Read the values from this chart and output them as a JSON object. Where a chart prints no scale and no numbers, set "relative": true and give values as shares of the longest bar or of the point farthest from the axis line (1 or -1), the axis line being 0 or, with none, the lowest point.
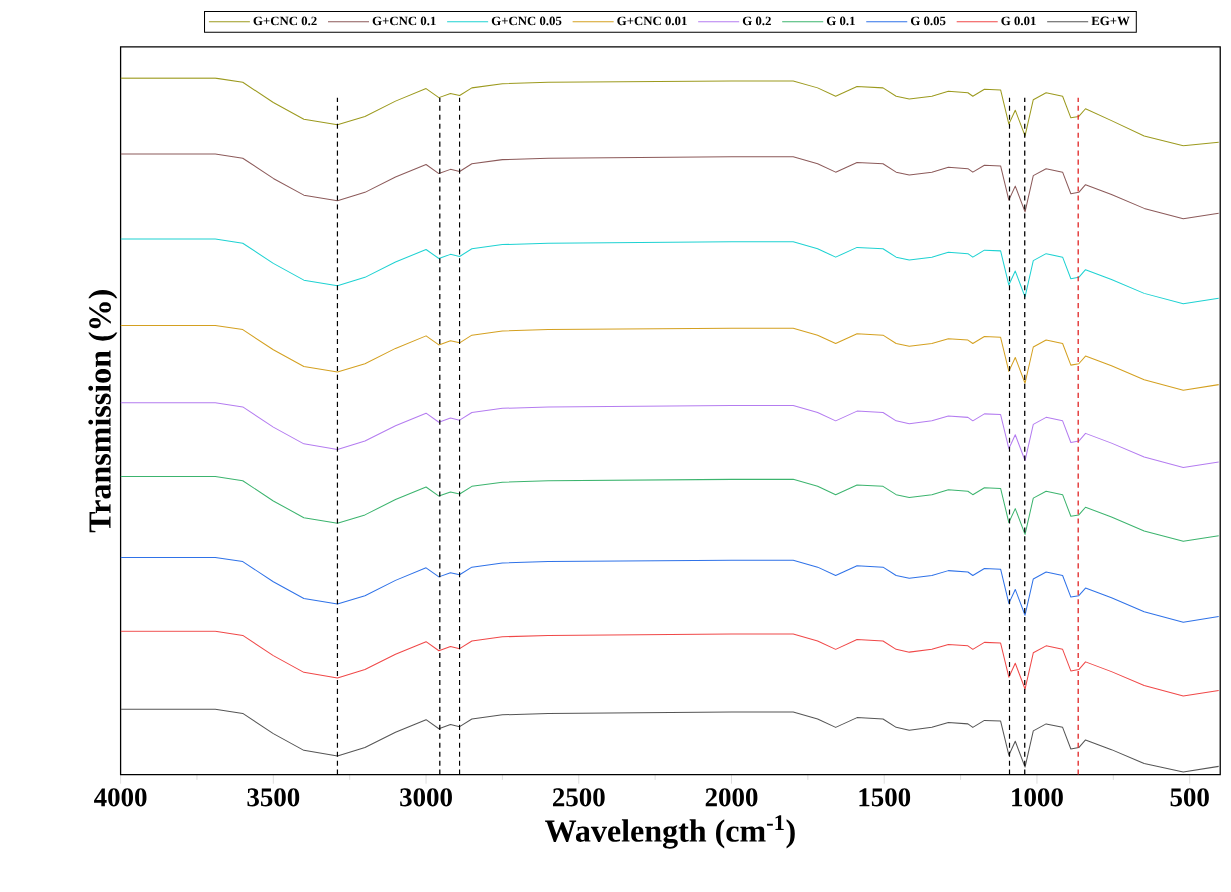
{
  "chart_data": {
    "type": "line",
    "xlabel": "Wavelength (cm$^{-1}$)",
    "ylabel": "Transmission (%)",
    "relative": true,
    "legend": "top",
    "marker": "none",
    "line_style": "solid",
    "xlim": [
      4000,
      400
    ],
    "xticks": [
      4000,
      3500,
      3000,
      2500,
      2000,
      1500,
      1000,
      500
    ],
    "x": [
      4000,
      3800,
      3690,
      3600,
      3500,
      3400,
      3290,
      3200,
      3100,
      3000,
      2958,
      2920,
      2890,
      2850,
      2750,
      2600,
      2000,
      1798,
      1718,
      1659,
      1589,
      1504,
      1461,
      1418,
      1344,
      1290,
      1226,
      1210,
      1172,
      1119,
      1092,
      1071,
      1039,
      1012,
      970,
      916,
      889,
      863,
      841,
      756,
      649,
      521,
      405
    ],
    "series": [
      {
        "name": "G+CNC 0.2",
        "color": "#9c9a1e",
        "values": [
          1,
          1,
          1,
          0.994,
          0.965,
          0.941,
          0.933,
          0.945,
          0.967,
          0.985,
          0.972,
          0.978,
          0.975,
          0.986,
          0.992,
          0.994,
          0.996,
          0.996,
          0.986,
          0.974,
          0.988,
          0.986,
          0.974,
          0.97,
          0.974,
          0.981,
          0.979,
          0.974,
          0.984,
          0.983,
          0.934,
          0.954,
          0.917,
          0.969,
          0.979,
          0.974,
          0.943,
          0.945,
          0.956,
          0.939,
          0.917,
          0.903,
          0.908
        ]
      },
      {
        "name": "G+CNC 0.1",
        "color": "#8c5a5a",
        "values": [
          0.891,
          0.891,
          0.891,
          0.885,
          0.856,
          0.832,
          0.824,
          0.836,
          0.858,
          0.876,
          0.863,
          0.869,
          0.866,
          0.877,
          0.883,
          0.885,
          0.887,
          0.887,
          0.877,
          0.865,
          0.879,
          0.877,
          0.865,
          0.861,
          0.865,
          0.872,
          0.87,
          0.865,
          0.875,
          0.874,
          0.825,
          0.845,
          0.808,
          0.86,
          0.87,
          0.865,
          0.834,
          0.836,
          0.847,
          0.833,
          0.813,
          0.798,
          0.806
        ]
      },
      {
        "name": "G+CNC 0.05",
        "color": "#1ed2d2",
        "values": [
          0.769,
          0.769,
          0.769,
          0.763,
          0.734,
          0.71,
          0.702,
          0.714,
          0.736,
          0.754,
          0.741,
          0.747,
          0.744,
          0.755,
          0.761,
          0.763,
          0.765,
          0.765,
          0.755,
          0.743,
          0.757,
          0.755,
          0.743,
          0.739,
          0.743,
          0.75,
          0.748,
          0.743,
          0.753,
          0.752,
          0.703,
          0.723,
          0.686,
          0.738,
          0.748,
          0.743,
          0.712,
          0.714,
          0.725,
          0.711,
          0.691,
          0.676,
          0.684
        ]
      },
      {
        "name": "G+CNC 0.01",
        "color": "#d4a020",
        "values": [
          0.645,
          0.645,
          0.645,
          0.639,
          0.61,
          0.586,
          0.578,
          0.59,
          0.612,
          0.63,
          0.617,
          0.623,
          0.62,
          0.631,
          0.637,
          0.639,
          0.641,
          0.641,
          0.631,
          0.619,
          0.633,
          0.631,
          0.619,
          0.615,
          0.619,
          0.626,
          0.624,
          0.619,
          0.629,
          0.628,
          0.579,
          0.599,
          0.562,
          0.614,
          0.624,
          0.619,
          0.588,
          0.59,
          0.601,
          0.587,
          0.567,
          0.552,
          0.56
        ]
      },
      {
        "name": "G 0.2",
        "color": "#b47cf0",
        "values": [
          0.534,
          0.534,
          0.534,
          0.528,
          0.499,
          0.475,
          0.467,
          0.479,
          0.501,
          0.519,
          0.506,
          0.512,
          0.509,
          0.52,
          0.526,
          0.528,
          0.53,
          0.53,
          0.52,
          0.508,
          0.522,
          0.52,
          0.508,
          0.504,
          0.508,
          0.515,
          0.513,
          0.508,
          0.518,
          0.517,
          0.468,
          0.488,
          0.451,
          0.503,
          0.513,
          0.508,
          0.477,
          0.479,
          0.49,
          0.476,
          0.456,
          0.441,
          0.449
        ]
      },
      {
        "name": "G 0.1",
        "color": "#3cb46e",
        "values": [
          0.428,
          0.428,
          0.428,
          0.422,
          0.393,
          0.369,
          0.361,
          0.373,
          0.395,
          0.413,
          0.4,
          0.406,
          0.403,
          0.414,
          0.42,
          0.422,
          0.424,
          0.424,
          0.414,
          0.402,
          0.416,
          0.414,
          0.402,
          0.398,
          0.402,
          0.409,
          0.407,
          0.402,
          0.412,
          0.411,
          0.362,
          0.382,
          0.345,
          0.397,
          0.407,
          0.402,
          0.371,
          0.373,
          0.384,
          0.37,
          0.35,
          0.335,
          0.343
        ]
      },
      {
        "name": "G 0.05",
        "color": "#2f72e8",
        "values": [
          0.312,
          0.312,
          0.312,
          0.306,
          0.277,
          0.253,
          0.245,
          0.257,
          0.279,
          0.297,
          0.284,
          0.29,
          0.287,
          0.298,
          0.304,
          0.306,
          0.308,
          0.308,
          0.298,
          0.286,
          0.3,
          0.298,
          0.286,
          0.282,
          0.286,
          0.293,
          0.291,
          0.286,
          0.296,
          0.295,
          0.246,
          0.266,
          0.229,
          0.281,
          0.291,
          0.286,
          0.255,
          0.257,
          0.268,
          0.254,
          0.234,
          0.219,
          0.227
        ]
      },
      {
        "name": "G 0.01",
        "color": "#f04848",
        "values": [
          0.206,
          0.206,
          0.206,
          0.2,
          0.171,
          0.147,
          0.139,
          0.151,
          0.173,
          0.191,
          0.178,
          0.184,
          0.181,
          0.192,
          0.198,
          0.2,
          0.202,
          0.202,
          0.192,
          0.18,
          0.194,
          0.192,
          0.18,
          0.176,
          0.18,
          0.187,
          0.185,
          0.18,
          0.19,
          0.189,
          0.14,
          0.16,
          0.123,
          0.175,
          0.185,
          0.18,
          0.149,
          0.151,
          0.162,
          0.148,
          0.128,
          0.113,
          0.121
        ]
      },
      {
        "name": "EG+W",
        "color": "#555555",
        "values": [
          0.094,
          0.094,
          0.094,
          0.088,
          0.059,
          0.035,
          0.027,
          0.039,
          0.061,
          0.079,
          0.066,
          0.072,
          0.069,
          0.08,
          0.086,
          0.088,
          0.09,
          0.09,
          0.08,
          0.068,
          0.082,
          0.08,
          0.068,
          0.064,
          0.068,
          0.075,
          0.073,
          0.068,
          0.078,
          0.077,
          0.028,
          0.048,
          0.011,
          0.063,
          0.073,
          0.068,
          0.037,
          0.039,
          0.05,
          0.036,
          0.016,
          0.004,
          0.012
        ]
      }
    ],
    "ref_lines": [
      {
        "axis": "x",
        "value": 3290,
        "color": "#000000",
        "line_style": "dashed"
      },
      {
        "axis": "x",
        "value": 2955,
        "color": "#000000",
        "line_style": "dashed"
      },
      {
        "axis": "x",
        "value": 2890,
        "color": "#000000",
        "line_style": "dashed"
      },
      {
        "axis": "x",
        "value": 1090,
        "color": "#000000",
        "line_style": "dashed"
      },
      {
        "axis": "x",
        "value": 1040,
        "color": "#000000",
        "line_style": "dashed"
      },
      {
        "axis": "x",
        "value": 865,
        "color": "#e02020",
        "line_style": "dashed"
      }
    ]
  }
}
